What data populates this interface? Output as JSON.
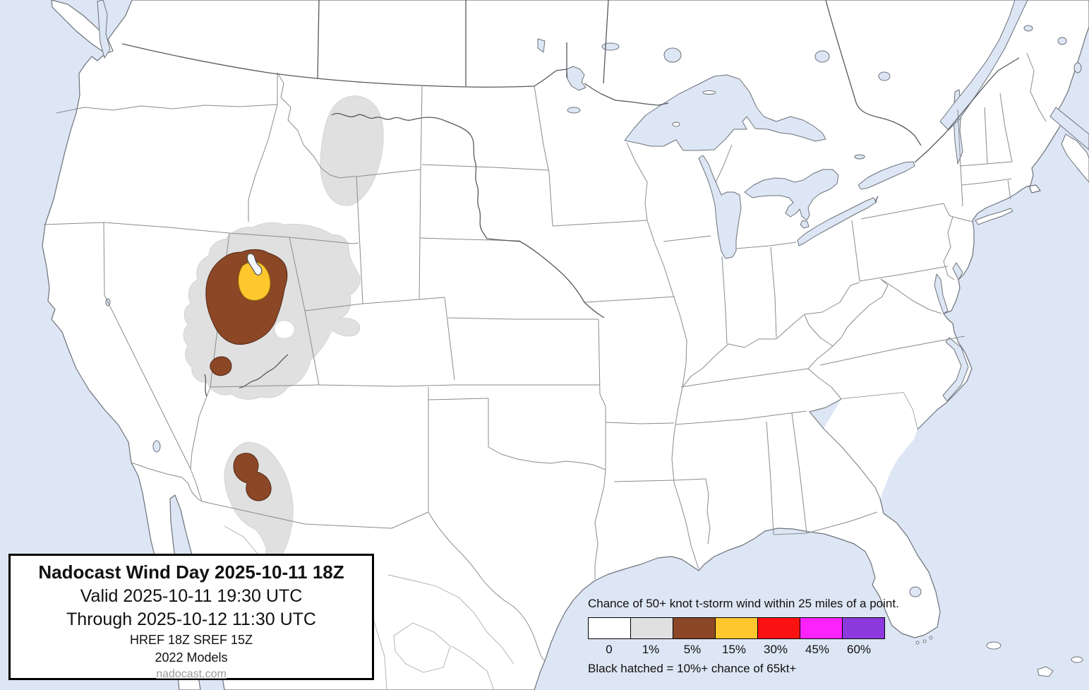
{
  "title_box": {
    "title": "Nadocast Wind Day 2025-10-11 18Z",
    "valid": "Valid 2025-10-11 19:30 UTC",
    "through": "Through 2025-10-12 11:30 UTC",
    "model_line": "HREF 18Z SREF 15Z",
    "models_line": "2022 Models",
    "website": "nadocast.com"
  },
  "legend": {
    "heading": "Chance of 50+ knot t-storm wind within 25 miles of a point.",
    "note": "Black hatched = 10%+ chance of 65kt+",
    "items": [
      {
        "label": "0",
        "color": "#ffffff"
      },
      {
        "label": "1%",
        "color": "#e0e0e0"
      },
      {
        "label": "5%",
        "color": "#8b4726"
      },
      {
        "label": "15%",
        "color": "#ffc72e"
      },
      {
        "label": "30%",
        "color": "#fa1212"
      },
      {
        "label": "45%",
        "color": "#fb22fb"
      },
      {
        "label": "60%",
        "color": "#8c3ae0"
      }
    ]
  },
  "map": {
    "description": "Continental United States map with thunderstorm-wind probability contours",
    "water_color": "#dde6f4",
    "land_color": "#ffffff",
    "regions": [
      {
        "name": "montana-1pct",
        "level": "1%",
        "location": "central Montana"
      },
      {
        "name": "great-basin-1pct",
        "level": "1%",
        "location": "Utah, southern Idaho, western Wyoming"
      },
      {
        "name": "northern-utah-5pct",
        "level": "5%",
        "location": "northern Utah"
      },
      {
        "name": "wasatch-15pct",
        "level": "15%",
        "location": "north-central Utah"
      },
      {
        "name": "southwest-utah-5pct",
        "level": "5%",
        "location": "southwest Utah"
      },
      {
        "name": "arizona-1pct",
        "level": "1%",
        "location": "central Arizona into Sonora"
      },
      {
        "name": "arizona-5pct",
        "level": "5%",
        "location": "central Arizona"
      }
    ]
  }
}
